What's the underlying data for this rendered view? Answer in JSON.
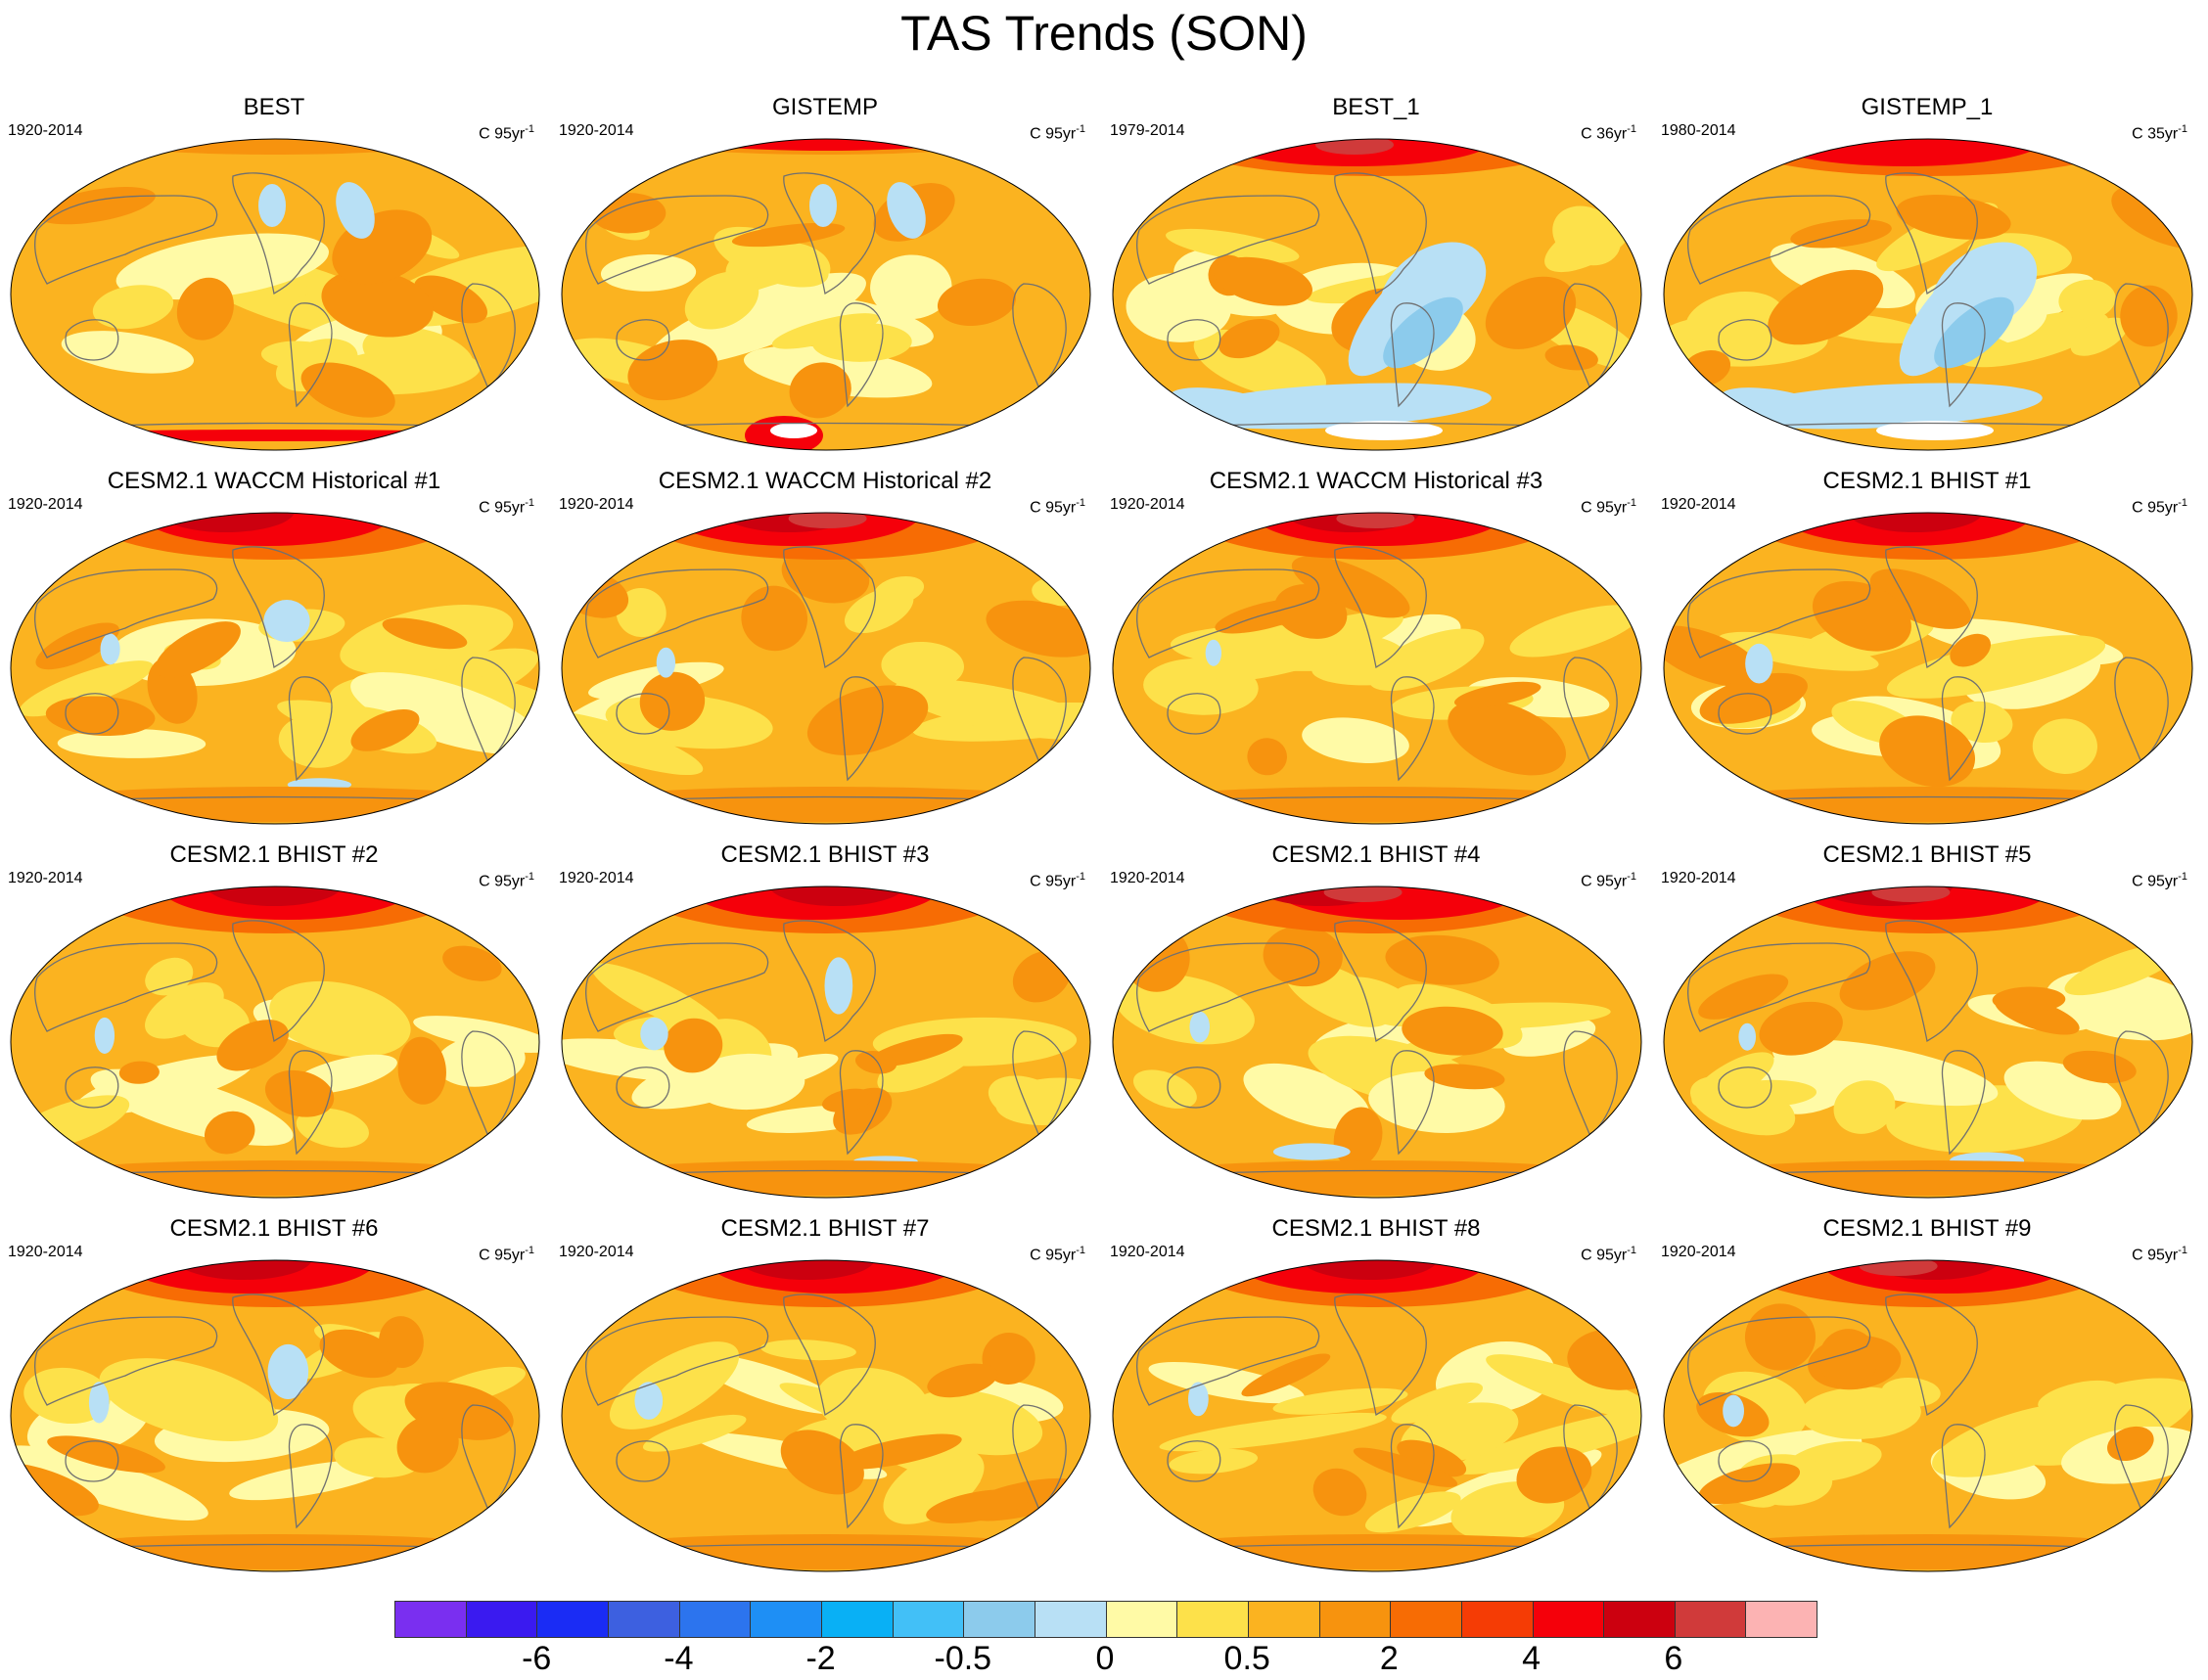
{
  "figure": {
    "title": "TAS Trends (SON)"
  },
  "panels": [
    {
      "title": "BEST",
      "period": "1920-2014",
      "units_main": "C 95yr",
      "units_sup": "-1",
      "variant": "obs_long",
      "seed": 1
    },
    {
      "title": "GISTEMP",
      "period": "1920-2014",
      "units_main": "C 95yr",
      "units_sup": "-1",
      "variant": "obs_long_gis",
      "seed": 2
    },
    {
      "title": "BEST_1",
      "period": "1979-2014",
      "units_main": "C 36yr",
      "units_sup": "-1",
      "variant": "obs_short",
      "seed": 3
    },
    {
      "title": "GISTEMP_1",
      "period": "1980-2014",
      "units_main": "C 35yr",
      "units_sup": "-1",
      "variant": "obs_short_gis",
      "seed": 4
    },
    {
      "title": "CESM2.1 WACCM Historical #1",
      "period": "1920-2014",
      "units_main": "C 95yr",
      "units_sup": "-1",
      "variant": "model",
      "seed": 5
    },
    {
      "title": "CESM2.1 WACCM Historical #2",
      "period": "1920-2014",
      "units_main": "C 95yr",
      "units_sup": "-1",
      "variant": "model",
      "seed": 6
    },
    {
      "title": "CESM2.1 WACCM Historical #3",
      "period": "1920-2014",
      "units_main": "C 95yr",
      "units_sup": "-1",
      "variant": "model",
      "seed": 7
    },
    {
      "title": "CESM2.1 BHIST #1",
      "period": "1920-2014",
      "units_main": "C 95yr",
      "units_sup": "-1",
      "variant": "model",
      "seed": 8
    },
    {
      "title": "CESM2.1 BHIST #2",
      "period": "1920-2014",
      "units_main": "C 95yr",
      "units_sup": "-1",
      "variant": "model",
      "seed": 9
    },
    {
      "title": "CESM2.1 BHIST #3",
      "period": "1920-2014",
      "units_main": "C 95yr",
      "units_sup": "-1",
      "variant": "model",
      "seed": 10
    },
    {
      "title": "CESM2.1 BHIST #4",
      "period": "1920-2014",
      "units_main": "C 95yr",
      "units_sup": "-1",
      "variant": "model",
      "seed": 11
    },
    {
      "title": "CESM2.1 BHIST #5",
      "period": "1920-2014",
      "units_main": "C 95yr",
      "units_sup": "-1",
      "variant": "model",
      "seed": 12
    },
    {
      "title": "CESM2.1 BHIST #6",
      "period": "1920-2014",
      "units_main": "C 95yr",
      "units_sup": "-1",
      "variant": "model",
      "seed": 13
    },
    {
      "title": "CESM2.1 BHIST #7",
      "period": "1920-2014",
      "units_main": "C 95yr",
      "units_sup": "-1",
      "variant": "model",
      "seed": 14
    },
    {
      "title": "CESM2.1 BHIST #8",
      "period": "1920-2014",
      "units_main": "C 95yr",
      "units_sup": "-1",
      "variant": "model",
      "seed": 15
    },
    {
      "title": "CESM2.1 BHIST #9",
      "period": "1920-2014",
      "units_main": "C 95yr",
      "units_sup": "-1",
      "variant": "model",
      "seed": 16
    }
  ],
  "colorbar": {
    "colors": [
      "#7a2ff0",
      "#3a1af0",
      "#1a2cf5",
      "#3d60e0",
      "#2c74ee",
      "#1e8ff5",
      "#09b0f5",
      "#42c0f7",
      "#8ccbec",
      "#b8e0f5",
      "#fffaa6",
      "#fde14a",
      "#fbb320",
      "#f7930e",
      "#f76c04",
      "#f53c05",
      "#f5000a",
      "#cc000f",
      "#d03a3a",
      "#fcb3b3"
    ],
    "labels": [
      {
        "text": "-6",
        "edge": 2
      },
      {
        "text": "-4",
        "edge": 4
      },
      {
        "text": "-2",
        "edge": 6
      },
      {
        "text": "-0.5",
        "edge": 8
      },
      {
        "text": "0",
        "edge": 10
      },
      {
        "text": "0.5",
        "edge": 12
      },
      {
        "text": "2",
        "edge": 14
      },
      {
        "text": "4",
        "edge": 16
      },
      {
        "text": "6",
        "edge": 18
      }
    ]
  }
}
